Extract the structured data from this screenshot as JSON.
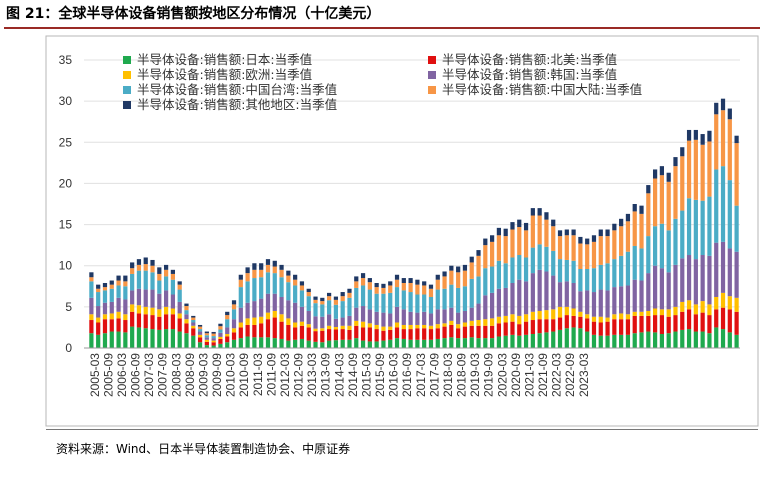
{
  "figure": {
    "title": "图 21：全球半导体设备销售额按地区分布情况（十亿美元）",
    "source": "资料来源：Wind、日本半导体装置制造协会、中原证券"
  },
  "chart_data": {
    "type": "bar",
    "stacked": true,
    "ylim": [
      0,
      35
    ],
    "yticks": [
      "0",
      "5",
      "10",
      "15",
      "20",
      "25",
      "30",
      "35"
    ],
    "xtick_labels": [
      "2005-03",
      "2005-09",
      "2006-03",
      "2006-09",
      "2007-03",
      "2007-09",
      "2008-03",
      "2008-09",
      "2009-03",
      "2009-09",
      "2010-03",
      "2010-09",
      "2011-03",
      "2011-09",
      "2012-03",
      "2012-09",
      "2013-03",
      "2013-09",
      "2014-03",
      "2014-09",
      "2015-03",
      "2015-09",
      "2016-03",
      "2016-09",
      "2017-03",
      "2017-09",
      "2018-03",
      "2018-09",
      "2019-03",
      "2019-09",
      "2020-03",
      "2020-09",
      "2021-03",
      "2021-09",
      "2022-03",
      "2022-09",
      "2023-03"
    ],
    "legend_order": [
      0,
      1,
      2,
      3,
      4,
      5,
      6
    ],
    "series": [
      {
        "name": "半导体设备:销售额:日本:当季值",
        "color": "#1fa94e",
        "values": [
          1.8,
          1.6,
          1.8,
          2.0,
          2.0,
          1.9,
          2.6,
          2.5,
          2.4,
          2.3,
          2.2,
          2.3,
          2.3,
          2.0,
          1.8,
          1.5,
          0.7,
          0.35,
          0.3,
          0.5,
          0.7,
          1.0,
          1.2,
          1.4,
          1.3,
          1.3,
          1.3,
          1.2,
          1.1,
          0.9,
          1.0,
          1.1,
          0.9,
          0.75,
          0.7,
          0.9,
          0.95,
          1.0,
          1.0,
          1.2,
          0.9,
          0.8,
          0.8,
          0.9,
          1.0,
          1.2,
          1.1,
          1.0,
          1.0,
          1.0,
          1.0,
          1.1,
          1.2,
          1.3,
          1.2,
          1.2,
          1.3,
          1.2,
          1.2,
          1.2,
          1.4,
          1.5,
          1.6,
          1.5,
          1.6,
          1.7,
          1.8,
          1.9,
          2.0,
          2.2,
          2.4,
          2.5,
          2.4,
          2.0,
          1.6,
          1.5,
          1.5,
          1.6,
          1.6,
          1.6,
          1.8,
          1.9,
          2.0,
          1.9,
          1.7,
          1.8,
          2.0,
          2.2,
          2.3,
          2.0,
          2.0,
          1.8,
          2.5,
          2.3,
          1.9,
          1.6
        ]
      },
      {
        "name": "半导体设备:销售额:北美:当季值",
        "color": "#e01010",
        "values": [
          1.6,
          1.5,
          1.7,
          1.5,
          1.6,
          1.5,
          1.8,
          1.7,
          1.7,
          1.7,
          1.6,
          1.8,
          1.8,
          1.6,
          1.2,
          0.9,
          0.6,
          0.4,
          0.4,
          0.6,
          0.7,
          0.9,
          1.3,
          1.4,
          1.5,
          1.7,
          2.2,
          2.5,
          2.1,
          1.9,
          1.5,
          1.6,
          1.6,
          1.3,
          1.4,
          1.4,
          1.3,
          1.3,
          1.2,
          1.5,
          1.6,
          1.7,
          1.5,
          1.2,
          1.2,
          1.3,
          1.2,
          1.3,
          1.4,
          1.4,
          1.3,
          1.3,
          1.4,
          1.5,
          1.2,
          1.4,
          1.4,
          1.5,
          1.5,
          1.5,
          1.6,
          1.6,
          1.6,
          1.4,
          1.6,
          1.7,
          1.7,
          1.6,
          1.5,
          1.5,
          1.6,
          1.4,
          1.4,
          1.6,
          1.6,
          1.6,
          1.7,
          1.9,
          1.9,
          1.9,
          2.1,
          2.0,
          1.9,
          2.1,
          2.3,
          2.0,
          2.0,
          2.2,
          2.4,
          2.1,
          2.3,
          2.2,
          2.2,
          2.6,
          2.8,
          2.8
        ]
      },
      {
        "name": "半导体设备:销售额:欧洲:当季值",
        "color": "#ffc000",
        "values": [
          0.7,
          0.6,
          0.6,
          0.7,
          0.8,
          0.7,
          0.9,
          1.0,
          0.9,
          0.9,
          0.9,
          0.9,
          0.7,
          0.6,
          0.5,
          0.3,
          0.3,
          0.25,
          0.2,
          0.25,
          0.3,
          0.5,
          0.6,
          0.8,
          0.9,
          0.8,
          0.8,
          0.8,
          0.9,
          0.8,
          0.6,
          0.5,
          0.4,
          0.3,
          0.3,
          0.4,
          0.3,
          0.4,
          0.5,
          0.6,
          0.7,
          0.5,
          0.5,
          0.5,
          0.4,
          0.6,
          0.5,
          0.5,
          0.4,
          0.4,
          0.4,
          0.5,
          0.4,
          0.5,
          0.5,
          0.5,
          0.6,
          0.7,
          0.8,
          0.9,
          0.8,
          0.8,
          0.9,
          1.0,
          0.9,
          1.0,
          1.0,
          1.1,
          1.2,
          1.3,
          1.0,
          0.9,
          0.6,
          0.5,
          0.6,
          0.7,
          0.5,
          0.6,
          0.7,
          0.6,
          0.5,
          0.5,
          0.6,
          0.8,
          0.7,
          0.9,
          1.0,
          1.2,
          1.1,
          1.2,
          1.4,
          1.3,
          1.5,
          1.8,
          1.6,
          1.7
        ]
      },
      {
        "name": "半导体设备:销售额:韩国:当季值",
        "color": "#8064a2",
        "values": [
          2.0,
          1.4,
          1.4,
          1.4,
          1.7,
          1.8,
          1.7,
          2.0,
          2.1,
          2.2,
          1.9,
          2.0,
          1.7,
          1.4,
          0.6,
          0.4,
          0.4,
          0.3,
          0.3,
          0.5,
          0.8,
          1.1,
          1.8,
          1.9,
          2.0,
          2.2,
          2.3,
          2.1,
          2.1,
          2.2,
          2.4,
          1.8,
          1.6,
          1.5,
          1.4,
          1.4,
          1.0,
          1.0,
          1.2,
          1.6,
          1.9,
          1.7,
          1.6,
          1.7,
          1.6,
          1.9,
          1.9,
          1.6,
          1.5,
          1.6,
          1.5,
          1.8,
          1.7,
          1.6,
          1.4,
          1.4,
          1.6,
          2.0,
          2.9,
          3.1,
          3.4,
          3.4,
          3.8,
          4.4,
          4.0,
          4.7,
          5.0,
          4.7,
          4.1,
          3.0,
          3.1,
          3.1,
          2.5,
          2.9,
          3.0,
          3.3,
          3.3,
          3.3,
          3.3,
          3.5,
          3.9,
          3.8,
          4.6,
          5.2,
          5.0,
          4.5,
          5.1,
          5.3,
          5.5,
          5.5,
          5.6,
          5.9,
          6.6,
          6.2,
          5.8,
          5.6
        ]
      },
      {
        "name": "半导体设备:销售额:中国台湾:当季值",
        "color": "#4bacc6",
        "values": [
          2.0,
          1.7,
          1.5,
          1.6,
          1.5,
          1.6,
          2.0,
          2.2,
          2.3,
          2.1,
          1.6,
          1.7,
          1.8,
          1.5,
          0.5,
          0.3,
          0.3,
          0.25,
          0.25,
          0.4,
          1.0,
          1.2,
          2.5,
          2.6,
          2.8,
          2.6,
          2.6,
          2.5,
          2.4,
          2.2,
          2.1,
          2.0,
          1.8,
          1.6,
          1.5,
          1.7,
          1.7,
          2.0,
          2.2,
          2.4,
          2.5,
          2.4,
          2.2,
          2.3,
          2.5,
          2.4,
          2.3,
          2.4,
          2.2,
          2.1,
          2.0,
          2.4,
          2.5,
          2.8,
          3.0,
          3.0,
          3.5,
          3.3,
          3.3,
          3.2,
          3.4,
          3.0,
          3.1,
          3.0,
          2.9,
          3.1,
          3.1,
          3.0,
          3.0,
          2.8,
          2.6,
          2.7,
          2.7,
          2.6,
          2.9,
          3.0,
          3.3,
          3.4,
          3.7,
          4.1,
          4.1,
          3.9,
          4.5,
          4.8,
          5.4,
          5.1,
          5.6,
          5.8,
          6.9,
          7.2,
          6.6,
          7.2,
          8.9,
          9.2,
          8.3,
          5.6
        ]
      },
      {
        "name": "半导体设备:销售额:中国大陆:当季值",
        "color": "#f79646",
        "values": [
          0.5,
          0.4,
          0.4,
          0.5,
          0.6,
          0.6,
          0.7,
          0.7,
          0.8,
          0.8,
          0.8,
          0.8,
          0.7,
          0.6,
          0.5,
          0.3,
          0.3,
          0.25,
          0.3,
          0.4,
          0.5,
          0.6,
          0.9,
          1.0,
          1.0,
          0.9,
          0.9,
          0.8,
          0.9,
          0.8,
          0.7,
          0.6,
          0.5,
          0.4,
          0.4,
          0.5,
          0.6,
          0.6,
          0.6,
          0.8,
          0.9,
          0.9,
          0.8,
          0.7,
          0.9,
          0.9,
          0.9,
          1.1,
          1.2,
          1.1,
          1.0,
          1.2,
          1.5,
          1.7,
          1.9,
          1.9,
          2.0,
          2.5,
          2.8,
          3.0,
          3.1,
          3.3,
          3.4,
          3.4,
          3.3,
          3.9,
          3.5,
          3.3,
          3.0,
          2.8,
          3.0,
          3.1,
          3.1,
          3.0,
          3.2,
          3.5,
          3.3,
          3.5,
          3.6,
          3.7,
          4.2,
          4.2,
          5.2,
          5.8,
          5.9,
          5.9,
          6.4,
          6.6,
          7.0,
          7.3,
          6.8,
          6.7,
          6.7,
          6.8,
          7.4,
          7.6
        ]
      },
      {
        "name": "半导体设备:销售额:其他地区:当季值",
        "color": "#1f3864",
        "values": [
          0.6,
          0.5,
          0.5,
          0.5,
          0.6,
          0.7,
          0.7,
          0.7,
          0.8,
          0.7,
          0.8,
          0.6,
          0.5,
          0.4,
          0.3,
          0.2,
          0.2,
          0.2,
          0.2,
          0.3,
          0.4,
          0.5,
          0.6,
          0.7,
          0.8,
          0.8,
          0.7,
          0.7,
          0.6,
          0.6,
          0.6,
          0.5,
          0.4,
          0.4,
          0.4,
          0.4,
          0.4,
          0.5,
          0.5,
          0.6,
          0.6,
          0.5,
          0.5,
          0.5,
          0.5,
          0.6,
          0.6,
          0.6,
          0.6,
          0.5,
          0.5,
          0.6,
          0.6,
          0.6,
          0.7,
          0.7,
          0.7,
          0.7,
          0.8,
          0.8,
          0.9,
          0.9,
          0.9,
          0.9,
          0.9,
          0.9,
          0.9,
          0.9,
          0.8,
          0.7,
          0.7,
          0.7,
          0.8,
          0.7,
          0.8,
          0.8,
          0.8,
          0.8,
          0.9,
          0.9,
          0.9,
          1.0,
          1.0,
          1.1,
          1.1,
          1.1,
          1.1,
          1.1,
          1.3,
          1.2,
          1.3,
          1.3,
          1.4,
          1.4,
          1.3,
          0.9
        ]
      }
    ]
  }
}
